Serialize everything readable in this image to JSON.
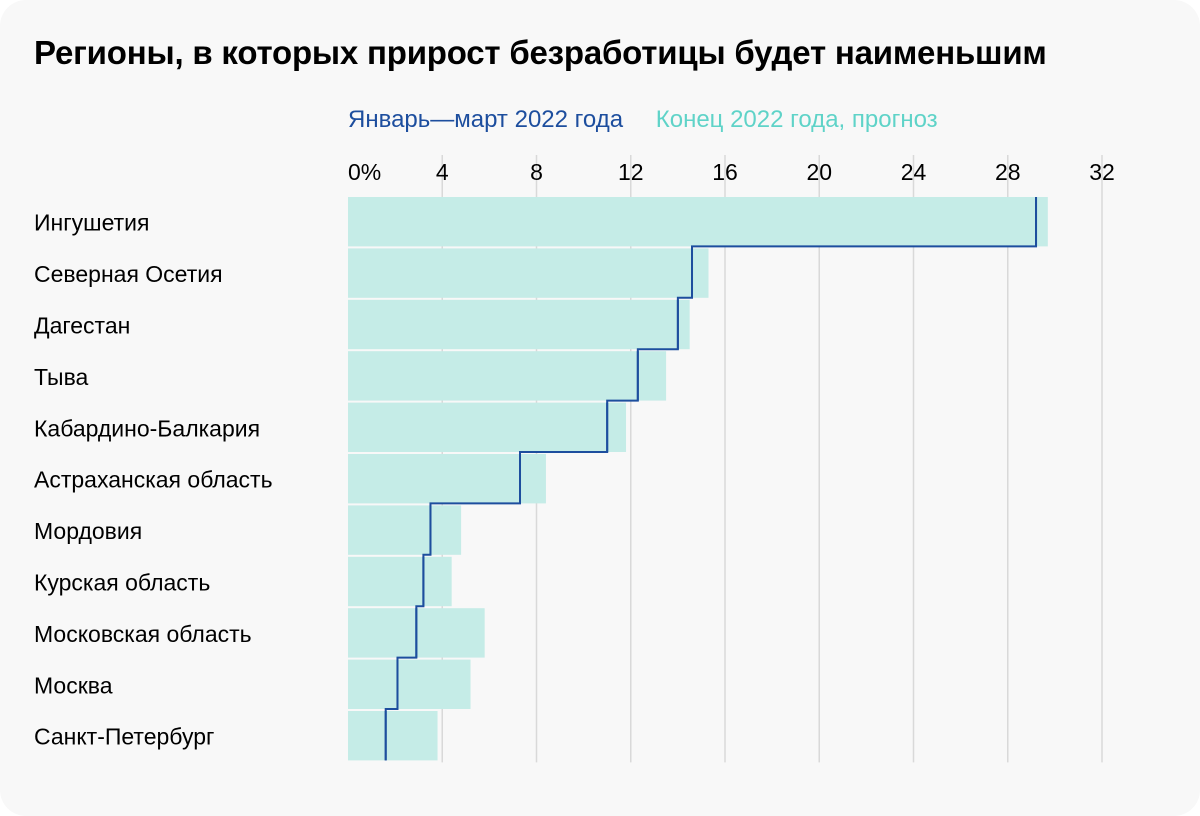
{
  "title": "Регионы, в которых прирост безработицы будет наименьшим",
  "legend": {
    "q1": "Январь—март 2022 года",
    "forecast": "Конец 2022 года, прогноз"
  },
  "colors": {
    "q1_line": "#1d4e9e",
    "forecast_bar": "#c5ece7",
    "grid": "#d9d9d9",
    "background": "#f8f8f8"
  },
  "chart_data": {
    "type": "bar",
    "orientation": "horizontal",
    "categories": [
      "Ингушетия",
      "Северная Осетия",
      "Дагестан",
      "Тыва",
      "Кабардино-Балкария",
      "Астраханская область",
      "Мордовия",
      "Курская область",
      "Московская область",
      "Москва",
      "Санкт-Петербург"
    ],
    "series": [
      {
        "name": "Конец 2022 года, прогноз",
        "style": "bar",
        "values": [
          29.7,
          15.3,
          14.5,
          13.5,
          11.8,
          8.4,
          4.8,
          4.4,
          5.8,
          5.2,
          3.8
        ]
      },
      {
        "name": "Январь—март 2022 года",
        "style": "step-line",
        "values": [
          29.2,
          14.6,
          14.0,
          12.3,
          11.0,
          7.3,
          3.5,
          3.2,
          2.9,
          2.1,
          1.6
        ]
      }
    ],
    "x_ticks": [
      "0%",
      "4",
      "8",
      "12",
      "16",
      "20",
      "24",
      "28",
      "32"
    ],
    "xlim": [
      0,
      32
    ],
    "grid": true,
    "legend_position": "top"
  }
}
